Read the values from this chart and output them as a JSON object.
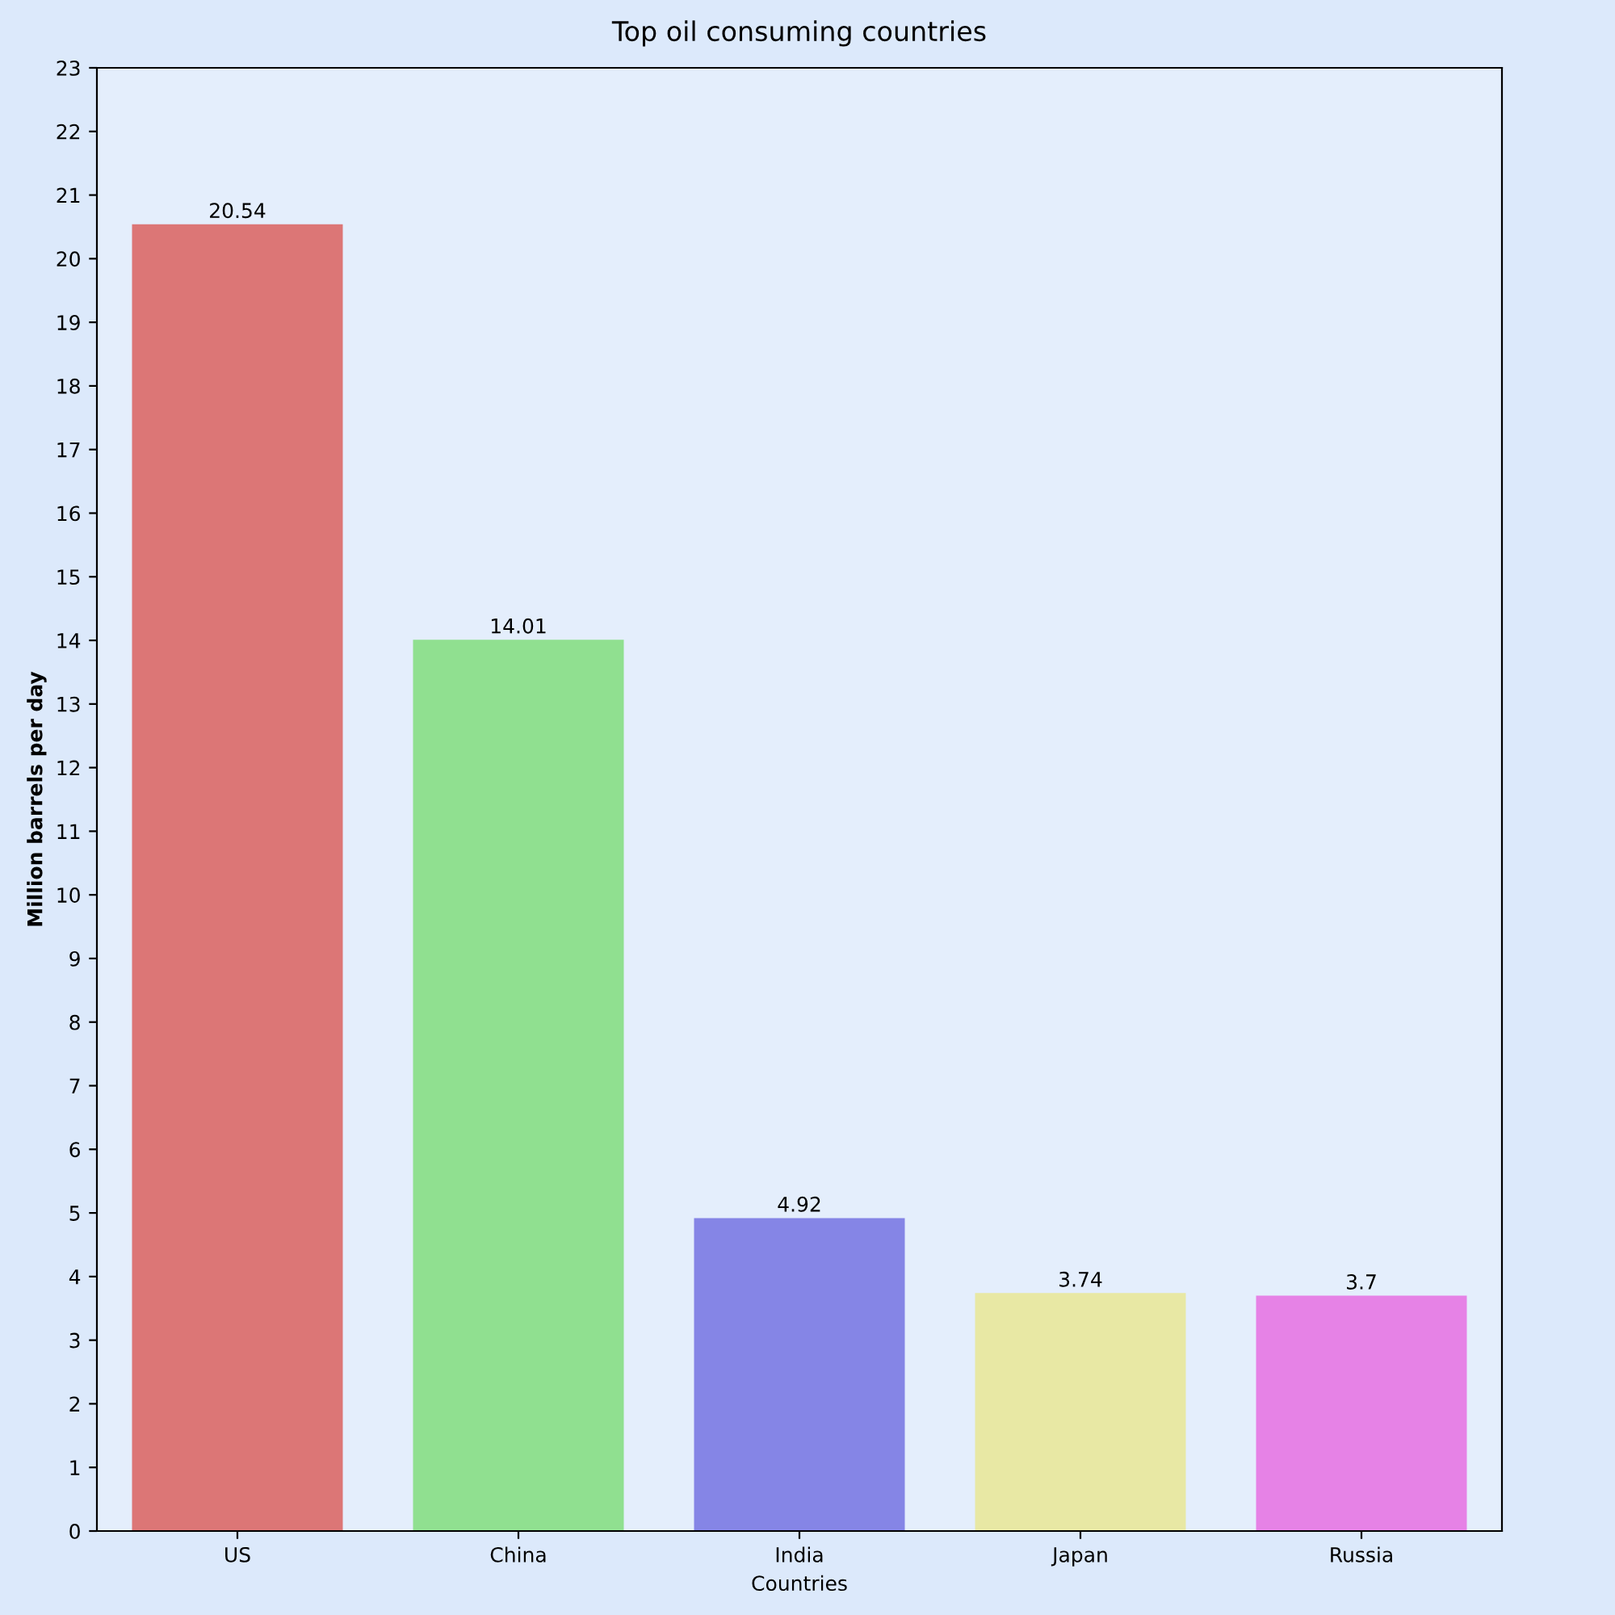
{
  "chart_data": {
    "type": "bar",
    "title": "Top oil consuming countries",
    "xlabel": "Countries",
    "ylabel": "Million barrels per day",
    "categories": [
      "US",
      "China",
      "India",
      "Japan",
      "Russia"
    ],
    "values": [
      20.54,
      14.01,
      4.92,
      3.74,
      3.7
    ],
    "colors": [
      "#dc7676",
      "#90e090",
      "#8585e6",
      "#e8e8a4",
      "#e682e6"
    ],
    "ylim": [
      0,
      23
    ],
    "yticks": [
      0,
      1,
      2,
      3,
      4,
      5,
      6,
      7,
      8,
      9,
      10,
      11,
      12,
      13,
      14,
      15,
      16,
      17,
      18,
      19,
      20,
      21,
      22,
      23
    ],
    "grid": false,
    "data_labels": true
  }
}
